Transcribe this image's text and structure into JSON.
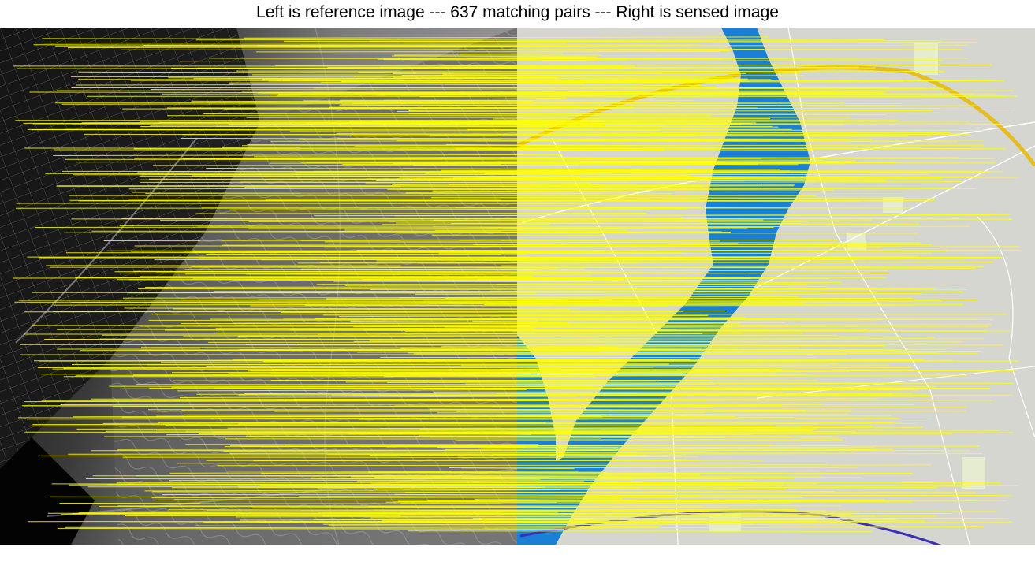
{
  "figure": {
    "title": "Left is reference image --- 637 matching pairs --- Right is sensed image",
    "match_count": 637,
    "left_image": "reference-image (grayscale aerial photo)",
    "right_image": "sensed-image (street map with river)"
  },
  "colors": {
    "match_line": "#ffff00",
    "river": "#1a7fd6",
    "map_background": "#d6d6d0",
    "map_roads": "#ffffff",
    "map_highway": "#e8b800",
    "map_railway": "#3b2fb8",
    "map_greenspace": "#e6ecd0",
    "photo_dark": "#050505",
    "photo_mid": "#6a6a6a",
    "photo_light": "#b8b8b8"
  }
}
